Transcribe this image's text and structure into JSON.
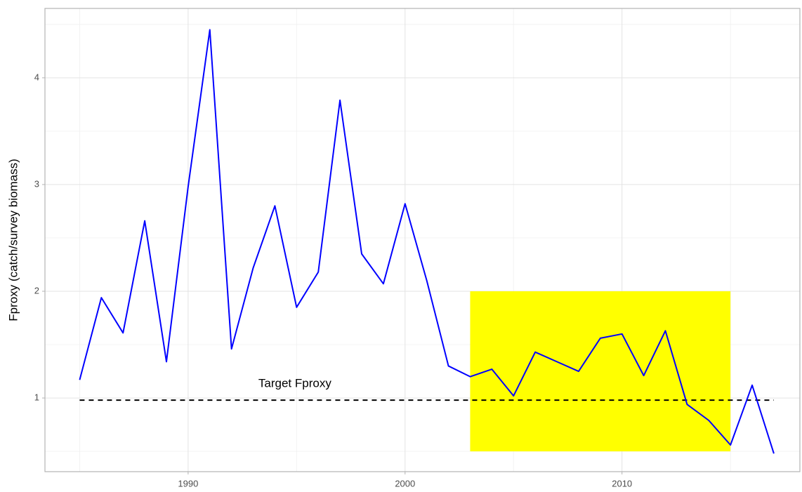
{
  "chart_data": {
    "type": "line",
    "y_label": "Fproxy (catch/survey biomass)",
    "x": [
      1985,
      1986,
      1987,
      1988,
      1989,
      1990,
      1991,
      1992,
      1993,
      1994,
      1995,
      1996,
      1997,
      1998,
      1999,
      2000,
      2001,
      2002,
      2003,
      2004,
      2005,
      2006,
      2007,
      2008,
      2009,
      2010,
      2011,
      2012,
      2013,
      2014,
      2015,
      2016,
      2017
    ],
    "values": [
      1.17,
      1.94,
      1.61,
      2.66,
      1.34,
      2.98,
      4.45,
      1.46,
      2.22,
      2.8,
      1.85,
      2.18,
      3.79,
      2.35,
      2.07,
      2.82,
      2.1,
      1.3,
      1.2,
      1.27,
      1.02,
      1.43,
      1.34,
      1.25,
      1.56,
      1.6,
      1.21,
      1.63,
      0.94,
      0.79,
      0.56,
      1.12,
      0.48
    ],
    "color": "#0000ff",
    "target": {
      "label": "Target Fproxy",
      "value": 0.98,
      "x": [
        1985,
        2017
      ],
      "color": "#000000"
    },
    "highlight": {
      "x": [
        2003,
        2015
      ],
      "y": [
        0.5,
        2.0
      ],
      "color": "#ffff00"
    },
    "xlim": [
      1983.4,
      2018.2
    ],
    "ylim": [
      0.31,
      4.65
    ],
    "xticks": [
      1990,
      2000,
      2010
    ],
    "yticks": [
      1,
      2,
      3,
      4
    ],
    "grid": true
  }
}
